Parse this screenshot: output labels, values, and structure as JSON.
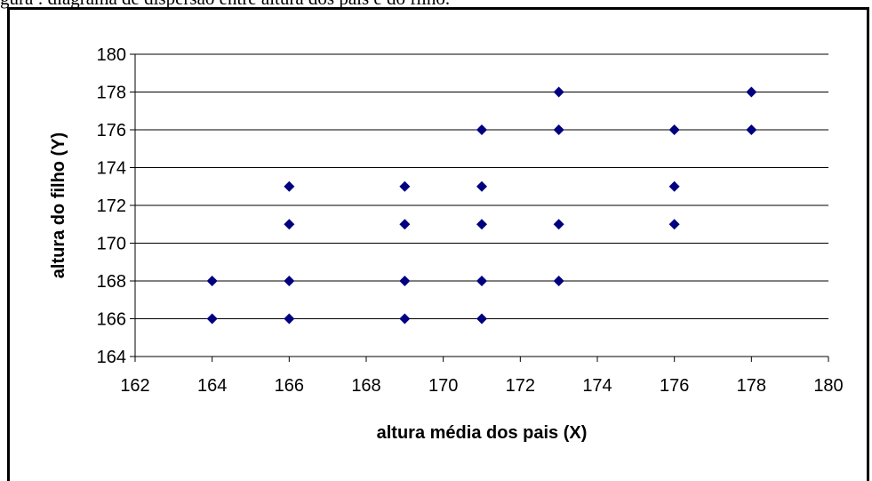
{
  "caption_fragment": "gura : diagrama de dispersão entre altura dos pais e do filho.",
  "chart_data": {
    "type": "scatter",
    "xlabel": "altura média dos pais (X)",
    "ylabel": "altura do filho (Y)",
    "xlim": [
      162,
      180
    ],
    "ylim": [
      164,
      180
    ],
    "xticks": [
      162,
      164,
      166,
      168,
      170,
      172,
      174,
      176,
      178,
      180
    ],
    "yticks": [
      164,
      166,
      168,
      170,
      172,
      174,
      176,
      178,
      180
    ],
    "grid": "horizontal",
    "marker_color": "#000080",
    "points": [
      {
        "x": 164,
        "y": 166
      },
      {
        "x": 164,
        "y": 168
      },
      {
        "x": 166,
        "y": 166
      },
      {
        "x": 166,
        "y": 168
      },
      {
        "x": 166,
        "y": 171
      },
      {
        "x": 166,
        "y": 173
      },
      {
        "x": 169,
        "y": 166
      },
      {
        "x": 169,
        "y": 168
      },
      {
        "x": 169,
        "y": 171
      },
      {
        "x": 169,
        "y": 173
      },
      {
        "x": 171,
        "y": 166
      },
      {
        "x": 171,
        "y": 168
      },
      {
        "x": 171,
        "y": 171
      },
      {
        "x": 171,
        "y": 173
      },
      {
        "x": 171,
        "y": 176
      },
      {
        "x": 173,
        "y": 168
      },
      {
        "x": 173,
        "y": 171
      },
      {
        "x": 173,
        "y": 176
      },
      {
        "x": 173,
        "y": 178
      },
      {
        "x": 176,
        "y": 171
      },
      {
        "x": 176,
        "y": 173
      },
      {
        "x": 176,
        "y": 176
      },
      {
        "x": 178,
        "y": 176
      },
      {
        "x": 178,
        "y": 178
      }
    ]
  }
}
